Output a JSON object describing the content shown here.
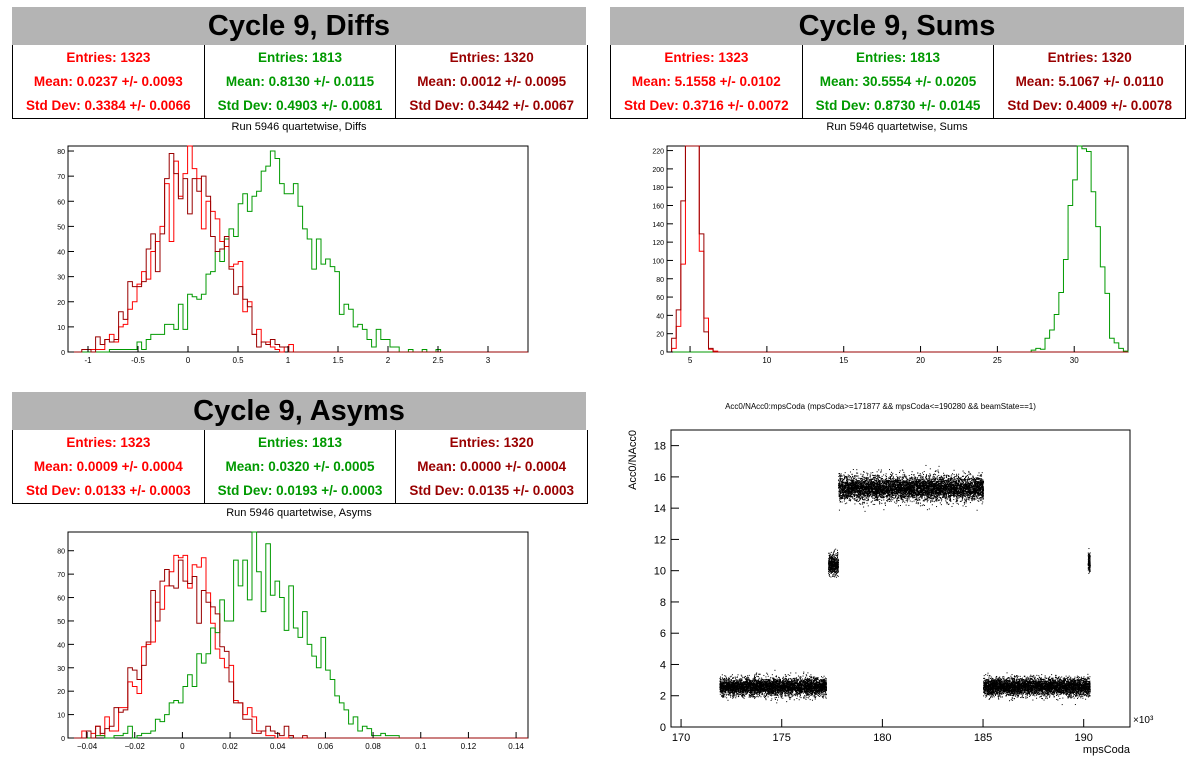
{
  "colors": {
    "red": "#ff0000",
    "green": "#009900",
    "darkred": "#990000",
    "black": "#000000"
  },
  "panels": {
    "diffs": {
      "title": "Cycle 9, Diffs",
      "stats": [
        {
          "entries": "Entries: 1323",
          "mean": "Mean: 0.0237 +/- 0.0093",
          "std": "Std Dev: 0.3384 +/- 0.0066",
          "color": "#ff0000"
        },
        {
          "entries": "Entries: 1813",
          "mean": "Mean: 0.8130 +/- 0.0115",
          "std": "Std Dev: 0.4903 +/- 0.0081",
          "color": "#009900"
        },
        {
          "entries": "Entries: 1320",
          "mean": "Mean: 0.0012 +/- 0.0095",
          "std": "Std Dev: 0.3442 +/- 0.0067",
          "color": "#990000"
        }
      ],
      "run_title": "Run 5946 quartetwise, Diffs"
    },
    "sums": {
      "title": "Cycle 9, Sums",
      "stats": [
        {
          "entries": "Entries: 1323",
          "mean": "Mean: 5.1558 +/- 0.0102",
          "std": "Std Dev: 0.3716 +/- 0.0072",
          "color": "#ff0000"
        },
        {
          "entries": "Entries: 1813",
          "mean": "Mean: 30.5554 +/- 0.0205",
          "std": "Std Dev: 0.8730 +/- 0.0145",
          "color": "#009900"
        },
        {
          "entries": "Entries: 1320",
          "mean": "Mean: 5.1067 +/- 0.0110",
          "std": "Std Dev: 0.4009 +/- 0.0078",
          "color": "#990000"
        }
      ],
      "run_title": "Run 5946 quartetwise, Sums"
    },
    "asyms": {
      "title": "Cycle 9, Asyms",
      "stats": [
        {
          "entries": "Entries: 1323",
          "mean": "Mean: 0.0009 +/- 0.0004",
          "std": "Std Dev: 0.0133 +/- 0.0003",
          "color": "#ff0000"
        },
        {
          "entries": "Entries: 1813",
          "mean": "Mean: 0.0320 +/- 0.0005",
          "std": "Std Dev: 0.0193 +/- 0.0003",
          "color": "#009900"
        },
        {
          "entries": "Entries: 1320",
          "mean": "Mean: 0.0000 +/- 0.0004",
          "std": "Std Dev: 0.0135 +/- 0.0003",
          "color": "#990000"
        }
      ],
      "run_title": "Run 5946 quartetwise, Asyms"
    }
  },
  "chart_data": [
    {
      "id": "diffs",
      "type": "histogram",
      "xlim": [
        -1.2,
        3.4
      ],
      "ylim": [
        0,
        82
      ],
      "xticks": [
        -1,
        -0.5,
        0,
        0.5,
        1,
        1.5,
        2,
        2.5,
        3
      ],
      "yticks": [
        0,
        10,
        20,
        30,
        40,
        50,
        60,
        70,
        80
      ],
      "series": [
        {
          "mean": 0.0237,
          "std": 0.3384,
          "entries": 1323,
          "color": "#ff0000"
        },
        {
          "mean": 0.813,
          "std": 0.4903,
          "entries": 1813,
          "color": "#009900"
        },
        {
          "mean": 0.0012,
          "std": 0.3442,
          "entries": 1320,
          "color": "#990000"
        }
      ]
    },
    {
      "id": "sums",
      "type": "histogram",
      "xlim": [
        3.5,
        33.5
      ],
      "ylim": [
        0,
        225
      ],
      "xticks": [
        5,
        10,
        15,
        20,
        25,
        30
      ],
      "yticks": [
        0,
        20,
        40,
        60,
        80,
        100,
        120,
        140,
        160,
        180,
        200,
        220
      ],
      "series": [
        {
          "mean": 5.1558,
          "std": 0.3716,
          "entries": 1323,
          "color": "#ff0000"
        },
        {
          "mean": 30.5554,
          "std": 0.873,
          "entries": 1813,
          "color": "#009900"
        },
        {
          "mean": 5.1067,
          "std": 0.4009,
          "entries": 1320,
          "color": "#990000"
        }
      ]
    },
    {
      "id": "asyms",
      "type": "histogram",
      "xlim": [
        -0.048,
        0.145
      ],
      "ylim": [
        0,
        88
      ],
      "xticks": [
        -0.04,
        -0.02,
        0,
        0.02,
        0.04,
        0.06,
        0.08,
        0.1,
        0.12,
        0.14
      ],
      "xticklabels": [
        "−0.04",
        "−0.02",
        "0",
        "0.02",
        "0.04",
        "0.06",
        "0.08",
        "0.1",
        "0.12",
        "0.14"
      ],
      "yticks": [
        0,
        10,
        20,
        30,
        40,
        50,
        60,
        70,
        80
      ],
      "series": [
        {
          "mean": 0.0009,
          "std": 0.0133,
          "entries": 1323,
          "color": "#ff0000"
        },
        {
          "mean": 0.032,
          "std": 0.0193,
          "entries": 1813,
          "color": "#009900"
        },
        {
          "mean": 0.0,
          "std": 0.0135,
          "entries": 1320,
          "color": "#990000"
        }
      ]
    },
    {
      "id": "scatter",
      "type": "scatter",
      "title": "Acc0/NAcc0:mpsCoda (mpsCoda>=171877 && mpsCoda<=190280 && beamState==1)",
      "xlabel": "mpsCoda",
      "ylabel": "Acc0/NAcc0",
      "x_multiplier": "×10³",
      "xlim": [
        169.5,
        192.3
      ],
      "ylim": [
        0,
        19
      ],
      "xticks": [
        170,
        175,
        180,
        185,
        190
      ],
      "yticks": [
        0,
        2,
        4,
        6,
        8,
        10,
        12,
        14,
        16,
        18
      ],
      "clusters": [
        {
          "x": [
            171.9,
            177.2
          ],
          "y": 2.6,
          "spread": 0.5
        },
        {
          "x": [
            177.3,
            177.8
          ],
          "y": 10.4,
          "spread": 0.6
        },
        {
          "x": [
            177.8,
            185.0
          ],
          "y": 15.3,
          "spread": 0.7
        },
        {
          "x": [
            185.0,
            190.3
          ],
          "y": 2.6,
          "spread": 0.5
        },
        {
          "x": [
            190.2,
            190.3
          ],
          "y": 10.6,
          "spread": 0.5
        }
      ]
    }
  ]
}
